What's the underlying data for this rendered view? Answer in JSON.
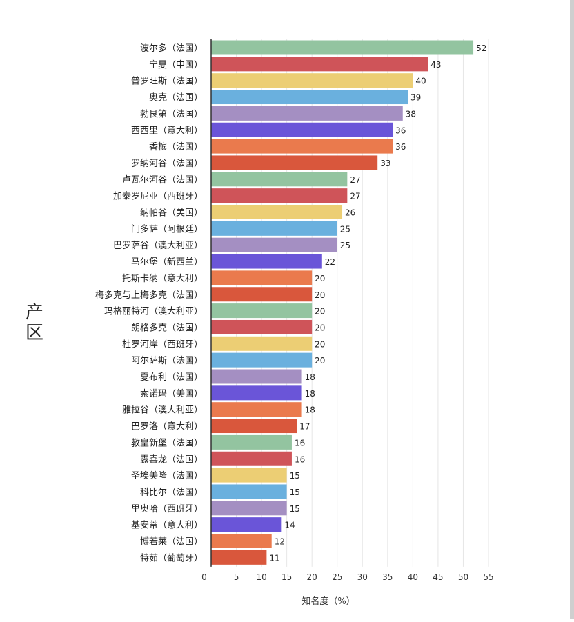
{
  "chart_data": {
    "type": "bar",
    "orientation": "horizontal",
    "categories": [
      "波尔多（法国）",
      "宁夏（中国）",
      "普罗旺斯（法国）",
      "奥克（法国）",
      "勃艮第（法国）",
      "西西里（意大利）",
      "香槟（法国）",
      "罗纳河谷（法国）",
      "卢瓦尔河谷（法国）",
      "加泰罗尼亚（西班牙）",
      "纳帕谷（美国）",
      "门多萨（阿根廷）",
      "巴罗萨谷（澳大利亚）",
      "马尔堡（新西兰）",
      "托斯卡纳（意大利）",
      "梅多克与上梅多克（法国）",
      "玛格丽特河（澳大利亚）",
      "朗格多克（法国）",
      "杜罗河岸（西班牙）",
      "阿尔萨斯（法国）",
      "夏布利（法国）",
      "索诺玛（美国）",
      "雅拉谷（澳大利亚）",
      "巴罗洛（意大利）",
      "教皇新堡（法国）",
      "露喜龙（法国）",
      "圣埃美隆（法国）",
      "科比尔（法国）",
      "里奥哈（西班牙）",
      "基安蒂（意大利）",
      "博若莱（法国）",
      "特茹（葡萄牙）"
    ],
    "values": [
      52,
      43,
      40,
      39,
      38,
      36,
      36,
      33,
      27,
      27,
      26,
      25,
      25,
      22,
      20,
      20,
      20,
      20,
      20,
      20,
      18,
      18,
      18,
      17,
      16,
      16,
      15,
      15,
      15,
      14,
      12,
      11
    ],
    "colors": [
      "#93c4a0",
      "#cf5459",
      "#ecce74",
      "#6ab0de",
      "#a48fc2",
      "#6a55d8",
      "#ea7a4d",
      "#d9573c"
    ],
    "xlabel": "知名度（%）",
    "ylabel": "产区",
    "xlim": [
      0,
      55
    ],
    "xticks": [
      0,
      5,
      10,
      15,
      20,
      25,
      30,
      35,
      40,
      45,
      50,
      55
    ],
    "grid": "vertical",
    "data_labels": true
  }
}
